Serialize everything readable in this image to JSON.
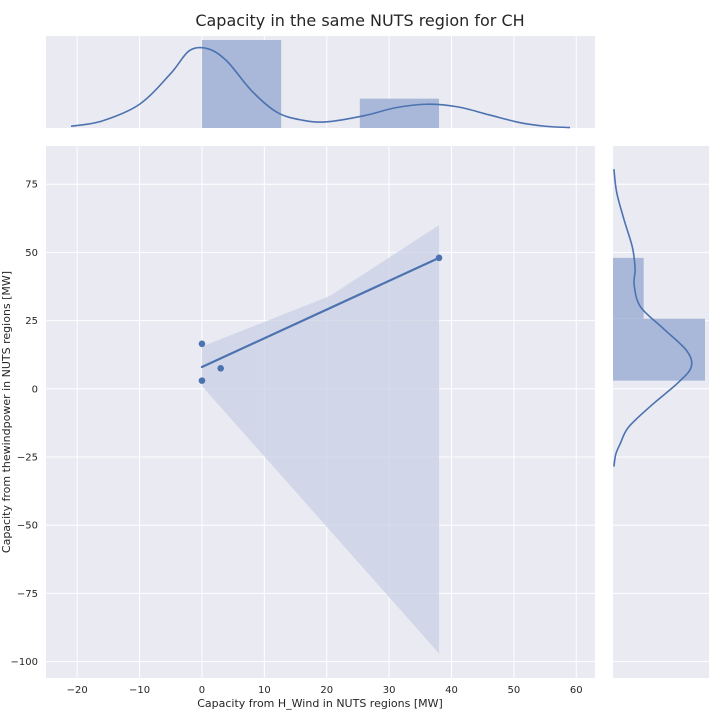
{
  "chart_data": {
    "type": "scatter",
    "title": "Capacity in the same NUTS region for CH",
    "xlabel": "Capacity from H_Wind in NUTS regions [MW]",
    "ylabel": "Capacity from thewindpower in NUTS regions [MW]",
    "xlim": [
      -25,
      63
    ],
    "ylim": [
      -106,
      89
    ],
    "x_ticks": [
      -20,
      -10,
      0,
      10,
      20,
      30,
      40,
      50,
      60
    ],
    "y_ticks": [
      -100,
      -75,
      -50,
      -25,
      0,
      25,
      50,
      75
    ],
    "grid": true,
    "points": [
      {
        "x": 0,
        "y": 16.5
      },
      {
        "x": 0,
        "y": 3
      },
      {
        "x": 3,
        "y": 7.5
      },
      {
        "x": 38,
        "y": 48
      }
    ],
    "regression": {
      "x": [
        0,
        38
      ],
      "y": [
        8,
        48
      ]
    },
    "confidence_band": {
      "upper": [
        [
          0,
          15.5
        ],
        [
          20.5,
          34
        ],
        [
          38,
          60
        ]
      ],
      "lower": [
        [
          0,
          1
        ],
        [
          38,
          -97
        ]
      ]
    },
    "marginal_x": {
      "histogram": [
        {
          "from": 0,
          "to": 12.7,
          "count": 3
        },
        {
          "from": 25.3,
          "to": 38,
          "count": 1
        }
      ],
      "kde": [
        [
          -21,
          0.02
        ],
        [
          -16,
          0.08
        ],
        [
          -10,
          0.27
        ],
        [
          -5,
          0.62
        ],
        [
          -2,
          0.88
        ],
        [
          1,
          0.9
        ],
        [
          4,
          0.76
        ],
        [
          8,
          0.42
        ],
        [
          12,
          0.18
        ],
        [
          16,
          0.09
        ],
        [
          20,
          0.07
        ],
        [
          26,
          0.14
        ],
        [
          31,
          0.23
        ],
        [
          36,
          0.27
        ],
        [
          41,
          0.24
        ],
        [
          46,
          0.15
        ],
        [
          51,
          0.06
        ],
        [
          55,
          0.02
        ],
        [
          59,
          0.005
        ]
      ]
    },
    "marginal_y": {
      "histogram": [
        {
          "from": 3,
          "to": 25.7,
          "count": 3
        },
        {
          "from": 25.7,
          "to": 48,
          "count": 1
        }
      ],
      "kde": [
        [
          80.5,
          0.01
        ],
        [
          72,
          0.04
        ],
        [
          62,
          0.12
        ],
        [
          52,
          0.21
        ],
        [
          44,
          0.24
        ],
        [
          38,
          0.23
        ],
        [
          30,
          0.3
        ],
        [
          22,
          0.55
        ],
        [
          14,
          0.8
        ],
        [
          8,
          0.85
        ],
        [
          2,
          0.7
        ],
        [
          -6,
          0.42
        ],
        [
          -14,
          0.17
        ],
        [
          -20,
          0.08
        ],
        [
          -24,
          0.03
        ],
        [
          -28.5,
          0.01
        ]
      ]
    },
    "colors": {
      "face": "#EAEAF2",
      "grid": "#ffffff",
      "series": "#4C72B0",
      "hist_fill": "#A9B8D8",
      "band_fill": "#C8D0E4"
    }
  }
}
